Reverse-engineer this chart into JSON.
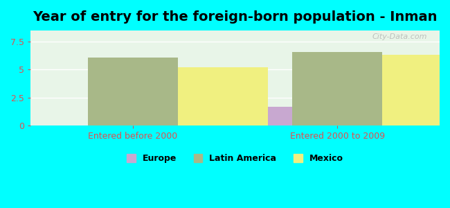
{
  "title": "Year of entry for the foreign-born population - Inman",
  "background_color": "#00FFFF",
  "plot_bg_color": "#e8f5e8",
  "groups": [
    "Entered before 2000",
    "Entered 2000 to 2009"
  ],
  "series": [
    {
      "name": "Europe",
      "color": "#c8a8d0",
      "values": [
        0,
        1.7
      ]
    },
    {
      "name": "Latin America",
      "color": "#a8b888",
      "values": [
        6.1,
        6.6
      ]
    },
    {
      "name": "Mexico",
      "color": "#f0f080",
      "values": [
        5.2,
        6.3
      ]
    }
  ],
  "ylim": [
    0,
    8.5
  ],
  "yticks": [
    0,
    2.5,
    5,
    7.5
  ],
  "ytick_labels": [
    "0",
    "2.5",
    "5",
    "7.5"
  ],
  "xlabel_color": "#e05050",
  "tick_color": "#e05050",
  "legend_fontsize": 9,
  "title_fontsize": 14,
  "bar_width": 0.22,
  "group_centers": [
    0.25,
    0.75
  ],
  "watermark": "City-Data.com"
}
